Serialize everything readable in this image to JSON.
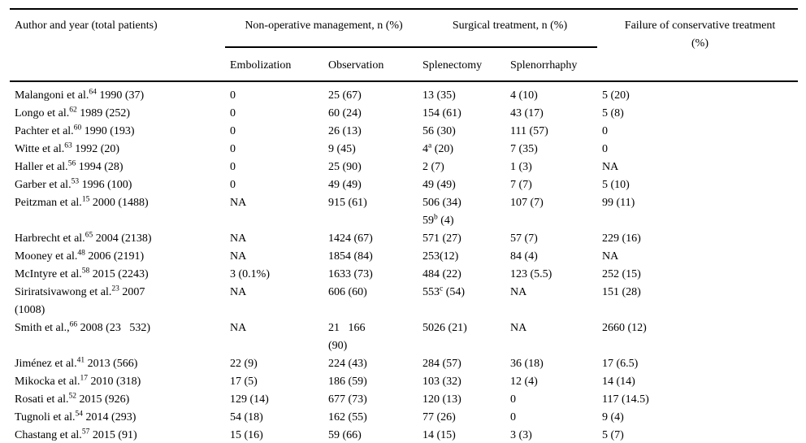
{
  "page": {
    "background": "#ffffff",
    "text_color": "#000000",
    "rule_color": "#000000"
  },
  "table": {
    "header": {
      "author_col": "Author and year (total patients)",
      "nonoperative_group": "Non-operative management, n (%)",
      "surgical_group": "Surgical treatment, n (%)",
      "failure_col": "Failure of conservative treatment\n(%)",
      "subcolumns": [
        "Embolization",
        "Observation",
        "Splenectomy",
        "Splenorrhaphy"
      ]
    },
    "rows": [
      {
        "author": "Malangoni et al.^{64} 1990 (37)",
        "embolization": "0",
        "observation": "25 (67)",
        "splenectomy": "13 (35)",
        "splenorrhaphy": "4 (10)",
        "failure": "5 (20)"
      },
      {
        "author": "Longo et al.^{62} 1989 (252)",
        "embolization": "0",
        "observation": "60 (24)",
        "splenectomy": "154 (61)",
        "splenorrhaphy": "43 (17)",
        "failure": "5 (8)"
      },
      {
        "author": "Pachter et al.^{60} 1990 (193)",
        "embolization": "0",
        "observation": "26 (13)",
        "splenectomy": "56 (30)",
        "splenorrhaphy": "111 (57)",
        "failure": "0"
      },
      {
        "author": "Witte et al.^{63} 1992 (20)",
        "embolization": "0",
        "observation": "9 (45)",
        "splenectomy": "4^{a} (20)",
        "splenorrhaphy": "7 (35)",
        "failure": "0"
      },
      {
        "author": "Haller et al.^{56} 1994 (28)",
        "embolization": "0",
        "observation": "25 (90)",
        "splenectomy": "2 (7)",
        "splenorrhaphy": "1 (3)",
        "failure": "NA"
      },
      {
        "author": "Garber et al.^{53} 1996 (100)",
        "embolization": "0",
        "observation": "49 (49)",
        "splenectomy": "49 (49)",
        "splenorrhaphy": "7 (7)",
        "failure": "5 (10)"
      },
      {
        "author": "Peitzman et al.^{15} 2000 (1488)",
        "embolization": "NA",
        "observation": "915 (61)",
        "splenectomy": "506 (34)\n59^{b} (4)",
        "splenorrhaphy": "107 (7)",
        "failure": "99 (11)"
      },
      {
        "author": "Harbrecht et al.^{65} 2004 (2138)",
        "embolization": "NA",
        "observation": "1424 (67)",
        "splenectomy": "571 (27)",
        "splenorrhaphy": "57 (7)",
        "failure": "229 (16)"
      },
      {
        "author": "Mooney et al.^{48} 2006 (2191)",
        "embolization": "NA",
        "observation": "1854 (84)",
        "splenectomy": "253(12)",
        "splenorrhaphy": "84 (4)",
        "failure": "NA"
      },
      {
        "author": "McIntyre et al.^{58} 2015 (2243)",
        "embolization": "3 (0.1%)",
        "observation": "1633 (73)",
        "splenectomy": "484 (22)",
        "splenorrhaphy": "123 (5.5)",
        "failure": "252 (15)"
      },
      {
        "author": "Siriratsivawong et al.^{23} 2007\n(1008)",
        "embolization": "NA",
        "observation": "606 (60)",
        "splenectomy": "553^{c} (54)",
        "splenorrhaphy": "NA",
        "failure": "151 (28)"
      },
      {
        "author": "Smith et al.,^{66} 2008 (23   532)",
        "embolization": "NA",
        "observation": "21   166\n(90)",
        "splenectomy": "5026 (21)",
        "splenorrhaphy": "NA",
        "failure": "2660 (12)"
      },
      {
        "author": "Jiménez et al.^{41} 2013 (566)",
        "embolization": "22 (9)",
        "observation": "224 (43)",
        "splenectomy": "284 (57)",
        "splenorrhaphy": "36 (18)",
        "failure": "17 (6.5)"
      },
      {
        "author": "Mikocka et al.^{17} 2010 (318)",
        "embolization": "17 (5)",
        "observation": "186 (59)",
        "splenectomy": "103 (32)",
        "splenorrhaphy": "12 (4)",
        "failure": "14 (14)"
      },
      {
        "author": "Rosati et al.^{52} 2015 (926)",
        "embolization": "129 (14)",
        "observation": "677 (73)",
        "splenectomy": "120 (13)",
        "splenorrhaphy": "0",
        "failure": "117 (14.5)"
      },
      {
        "author": "Tugnoli et al.^{54} 2014 (293)",
        "embolization": "54 (18)",
        "observation": "162 (55)",
        "splenectomy": "77 (26)",
        "splenorrhaphy": "0",
        "failure": "9 (4)"
      },
      {
        "author": "Chastang et al.^{57} 2015 (91)",
        "embolization": "15 (16)",
        "observation": "59 (66)",
        "splenectomy": "14 (15)",
        "splenorrhaphy": "3 (3)",
        "failure": "5 (7)"
      }
    ]
  }
}
